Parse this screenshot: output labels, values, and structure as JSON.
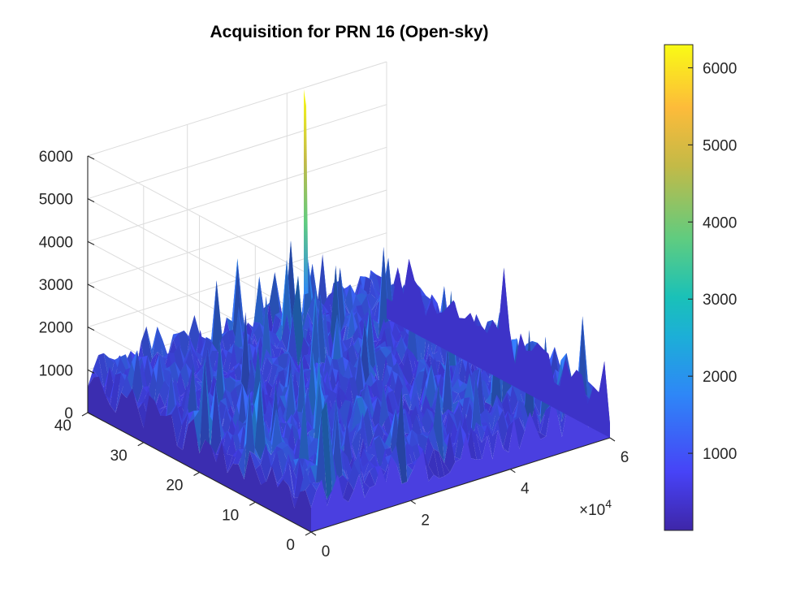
{
  "chart_data": {
    "type": "surface",
    "title": "Acquisition for PRN 16 (Open-sky)",
    "xlabel": "",
    "ylabel": "",
    "zlabel": "",
    "x_axis": {
      "ticks": [
        "0",
        "2",
        "4",
        "6"
      ],
      "exponent_label": "×10",
      "exponent_power": "4",
      "range": [
        0,
        60000
      ]
    },
    "y_axis": {
      "ticks": [
        "0",
        "10",
        "20",
        "30",
        "40"
      ],
      "range": [
        0,
        40
      ]
    },
    "z_axis": {
      "ticks": [
        "0",
        "1000",
        "2000",
        "3000",
        "4000",
        "5000",
        "6000"
      ],
      "range": [
        0,
        6000
      ]
    },
    "noise_floor_typical": 1000,
    "noise_peaks_max": 2800,
    "peak": {
      "x": 40000,
      "y": 37,
      "z": 6300
    },
    "colorbar": {
      "ticks": [
        "1000",
        "2000",
        "3000",
        "4000",
        "5000",
        "6000"
      ],
      "range": [
        0,
        6300
      ],
      "colormap": [
        "#3e26a8",
        "#4743f7",
        "#2e87f7",
        "#1cafd7",
        "#1ac1b8",
        "#5fcc80",
        "#c3ba47",
        "#fdbb3a",
        "#f9fb15"
      ]
    },
    "grid": true
  }
}
